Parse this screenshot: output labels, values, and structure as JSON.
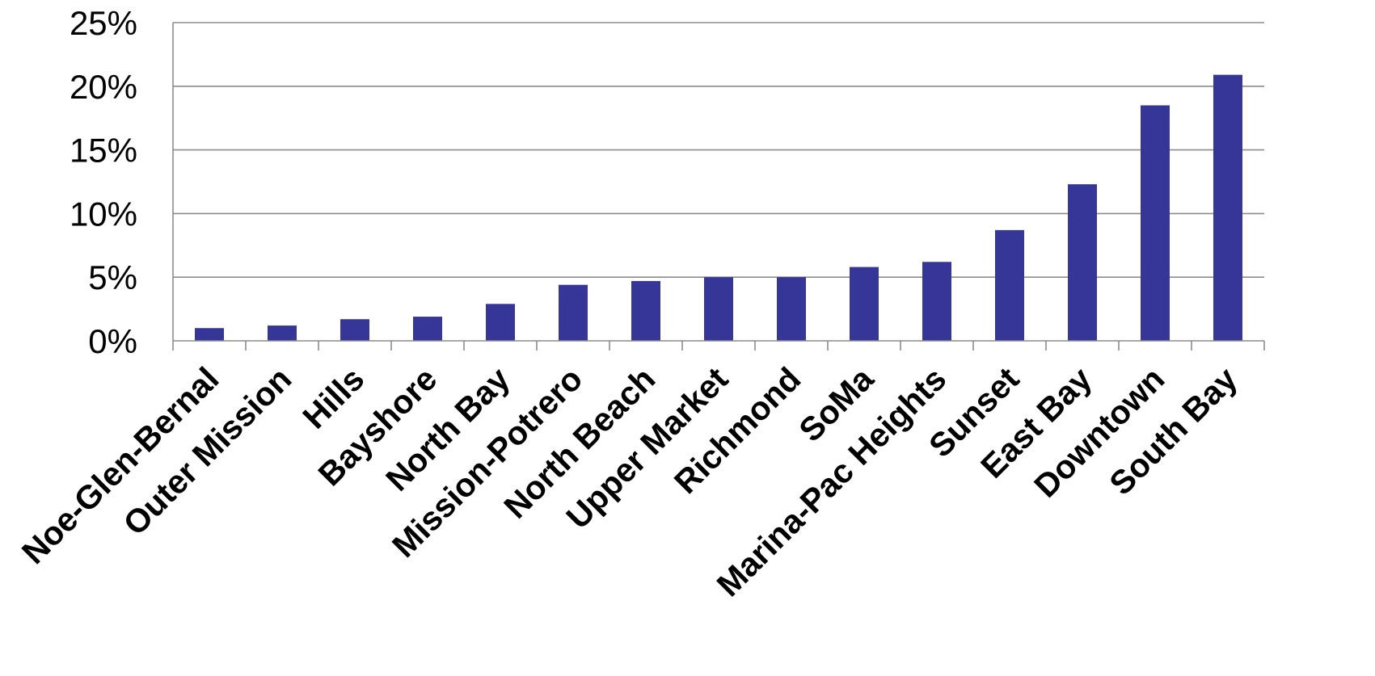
{
  "chart_data": {
    "type": "bar",
    "title": "",
    "xlabel": "",
    "ylabel": "",
    "categories": [
      "Noe-Glen-Bernal",
      "Outer Mission",
      "Hills",
      "Bayshore",
      "North Bay",
      "Mission-Potrero",
      "North Beach",
      "Upper Market",
      "Richmond",
      "SoMa",
      "Marina-Pac Heights",
      "Sunset",
      "East Bay",
      "Downtown",
      "South Bay"
    ],
    "values": [
      1.0,
      1.2,
      1.7,
      1.9,
      2.9,
      4.4,
      4.7,
      5.0,
      5.0,
      5.8,
      6.2,
      8.7,
      12.3,
      18.5,
      20.9
    ],
    "ylim": [
      0,
      25
    ],
    "yticks": [
      0,
      5,
      10,
      15,
      20,
      25
    ],
    "ytick_labels": [
      "0%",
      "5%",
      "10%",
      "15%",
      "20%",
      "25%"
    ],
    "grid": true,
    "legend": "none",
    "bar_color": "#363699",
    "grid_color": "#8c8c8c"
  }
}
